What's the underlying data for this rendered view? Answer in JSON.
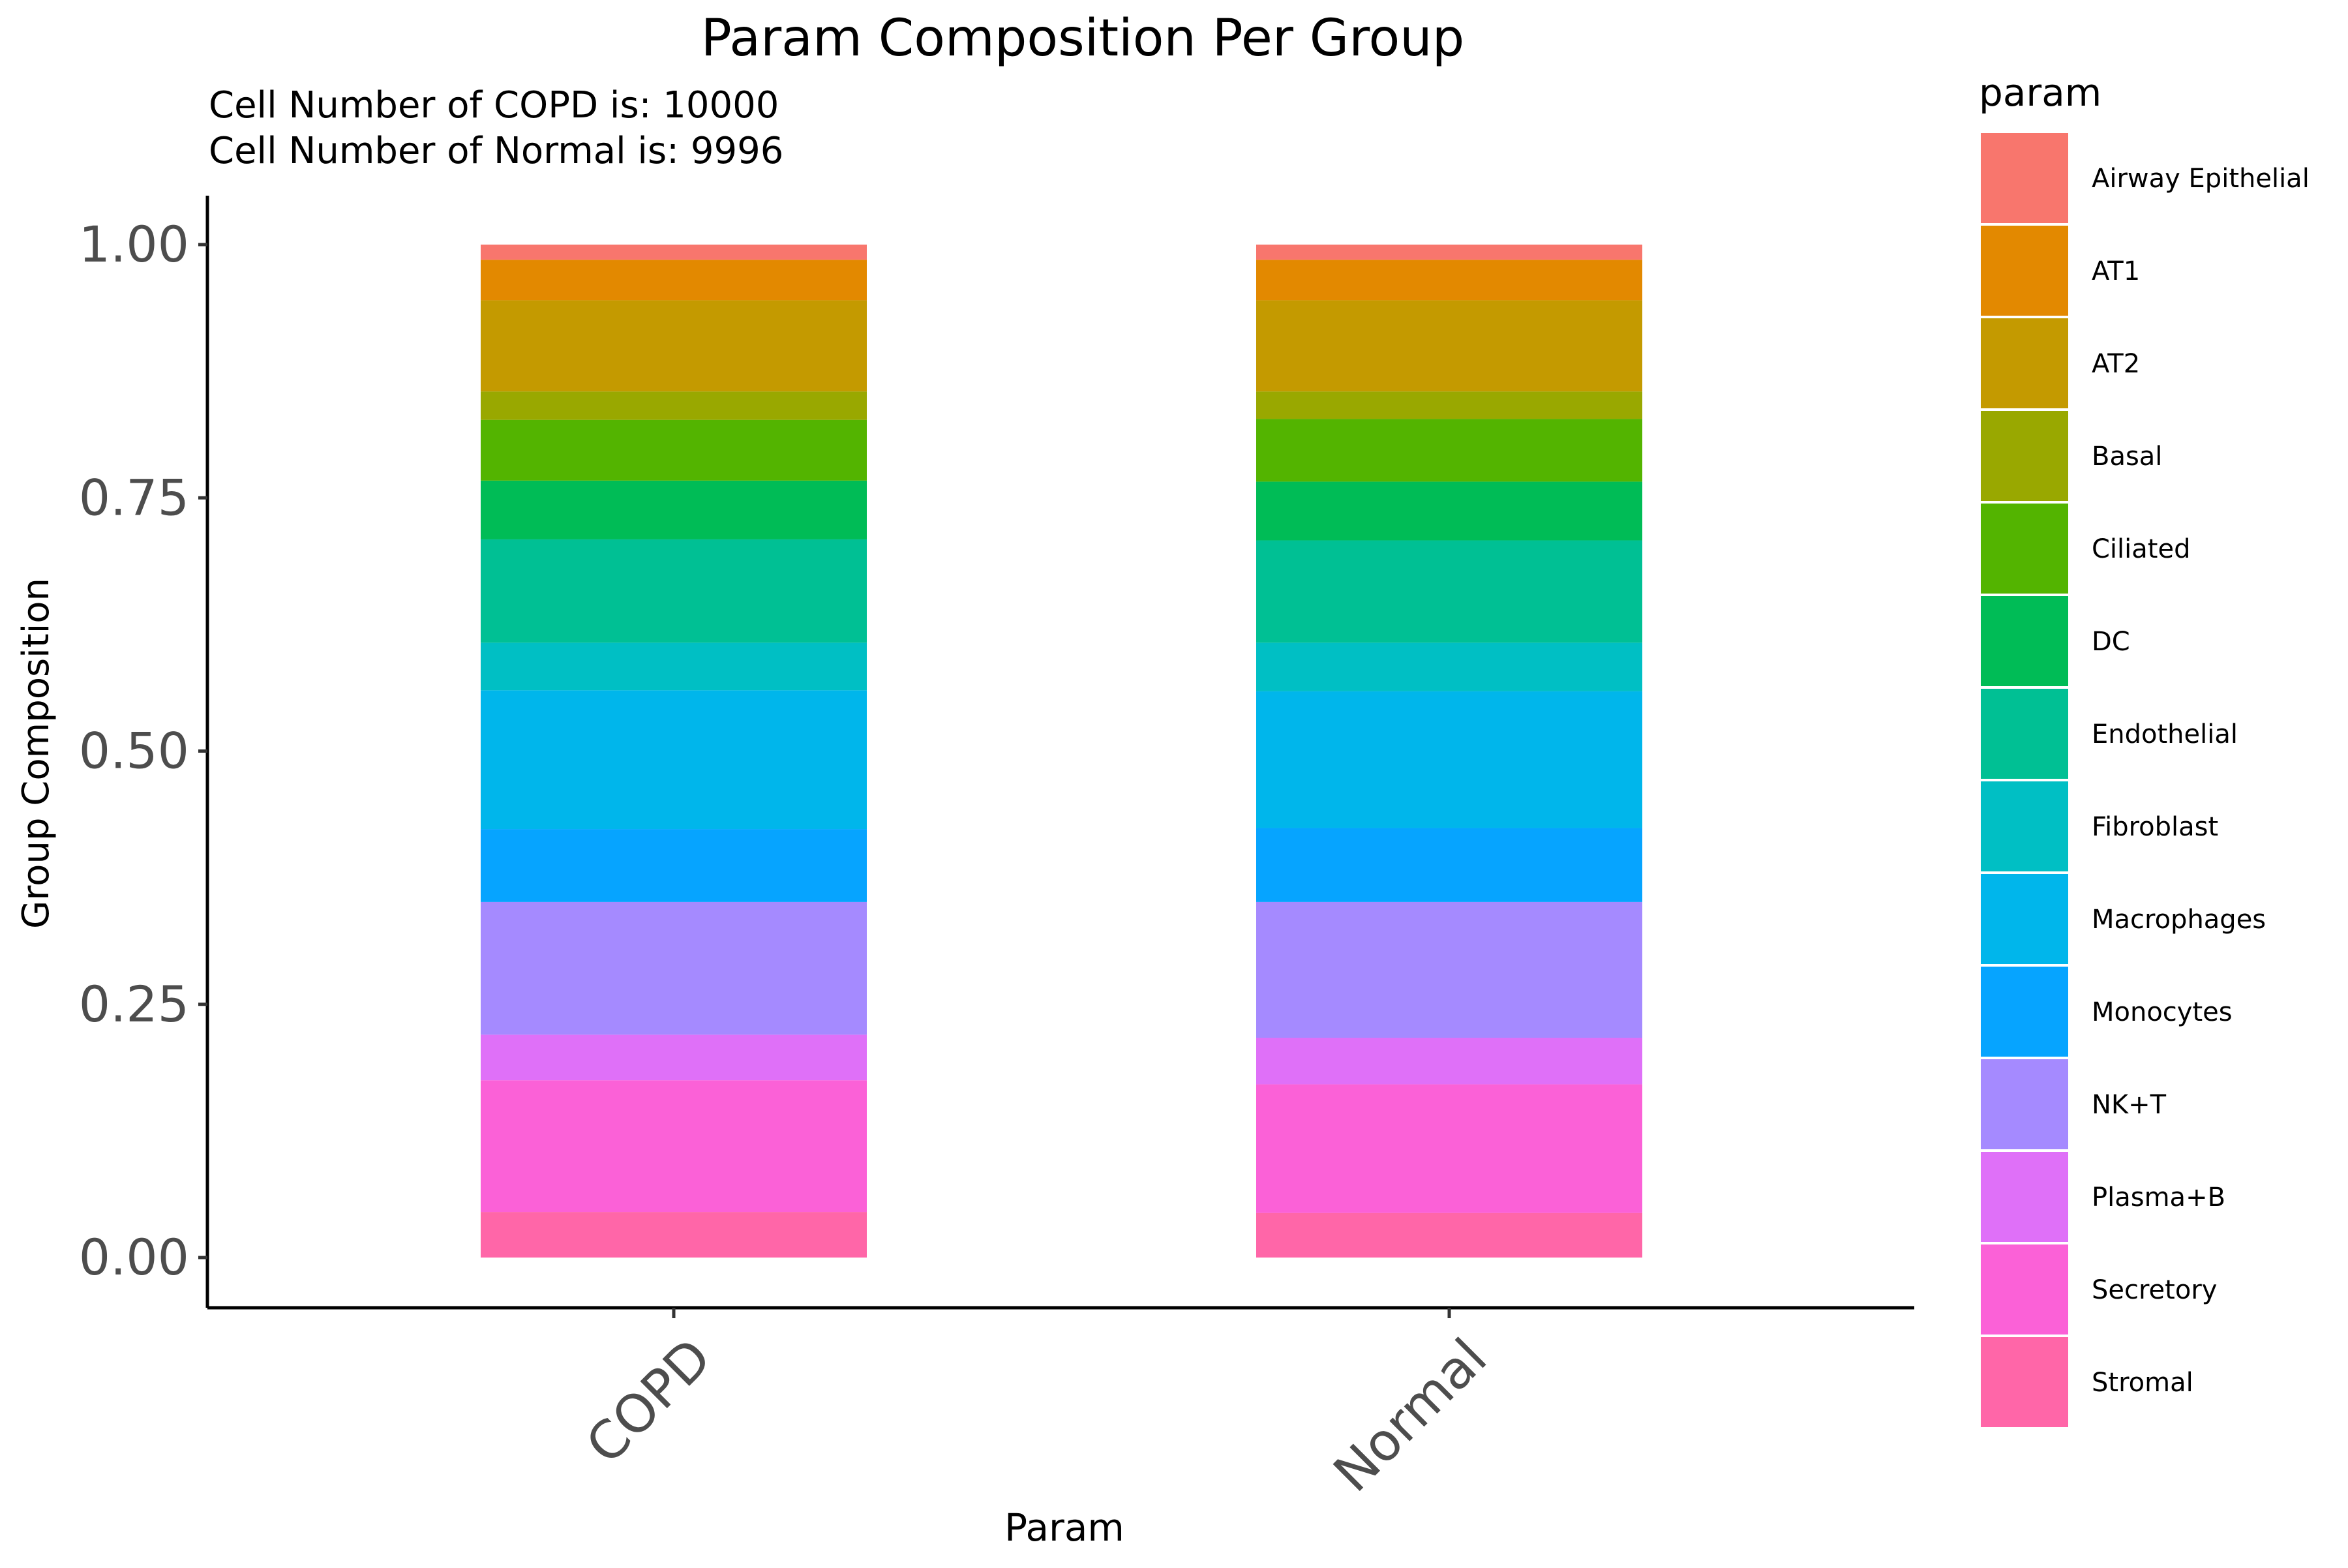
{
  "chart_data": {
    "type": "bar",
    "stacked": true,
    "title": "Param Composition Per Group",
    "subtitle": [
      "Cell Number of COPD is: 10000",
      "Cell Number of Normal is: 9996"
    ],
    "xlabel": "Param",
    "ylabel": "Group Composition",
    "ylim": [
      0,
      1
    ],
    "y_ticks": [
      0,
      0.25,
      0.5,
      0.75,
      1
    ],
    "y_tick_labels": [
      "0.00",
      "0.25",
      "0.50",
      "0.75",
      "1.00"
    ],
    "categories": [
      "COPD",
      "Normal"
    ],
    "grid": false,
    "legend": {
      "title": "param",
      "position": "right"
    },
    "series": [
      {
        "name": "Airway Epithelial",
        "color": "#F8766D",
        "values": [
          0.015,
          0.015
        ]
      },
      {
        "name": "AT1",
        "color": "#E38900",
        "values": [
          0.04,
          0.04
        ]
      },
      {
        "name": "AT2",
        "color": "#C49A00",
        "values": [
          0.09,
          0.09
        ]
      },
      {
        "name": "Basal",
        "color": "#99A800",
        "values": [
          0.028,
          0.027
        ]
      },
      {
        "name": "Ciliated",
        "color": "#53B400",
        "values": [
          0.06,
          0.062
        ]
      },
      {
        "name": "DC",
        "color": "#00BC56",
        "values": [
          0.058,
          0.058
        ]
      },
      {
        "name": "Endothelial",
        "color": "#00C094",
        "values": [
          0.102,
          0.101
        ]
      },
      {
        "name": "Fibroblast",
        "color": "#00BFC4",
        "values": [
          0.047,
          0.048
        ]
      },
      {
        "name": "Macrophages",
        "color": "#00B6EB",
        "values": [
          0.137,
          0.135
        ]
      },
      {
        "name": "Monocytes",
        "color": "#06A4FF",
        "values": [
          0.072,
          0.073
        ]
      },
      {
        "name": "NK+T",
        "color": "#A58AFF",
        "values": [
          0.131,
          0.134
        ]
      },
      {
        "name": "Plasma+B",
        "color": "#DF70F8",
        "values": [
          0.045,
          0.046
        ]
      },
      {
        "name": "Secretory",
        "color": "#FB61D7",
        "values": [
          0.13,
          0.127
        ]
      },
      {
        "name": "Stromal",
        "color": "#FF66A8",
        "values": [
          0.045,
          0.044
        ]
      }
    ]
  }
}
